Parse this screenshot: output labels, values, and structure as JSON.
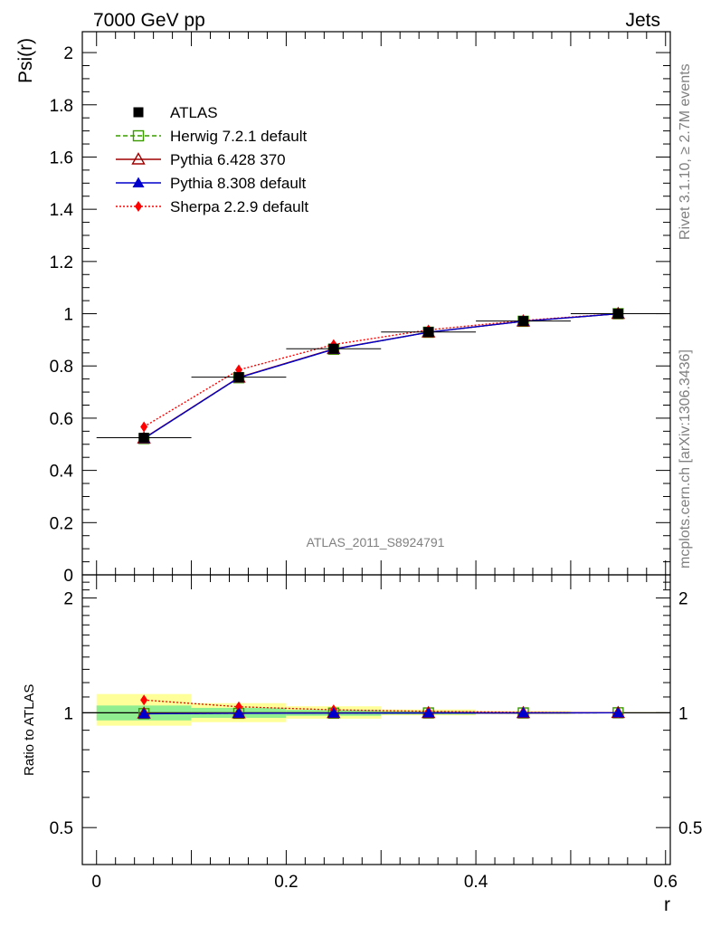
{
  "header": {
    "left": "7000 GeV pp",
    "right": "Jets"
  },
  "side_text": {
    "rivet": "Rivet 3.1.10, ≥ 2.7M events",
    "source": "mcplots.cern.ch [arXiv:1306.3436]"
  },
  "analysis_label": "ATLAS_2011_S8924791",
  "colors": {
    "atlas": "#000000",
    "herwig": "#3a9a00",
    "pythia6": "#a00000",
    "pythia8": "#0000cc",
    "sherpa": "#ff0000",
    "band_inner": "#90ee90",
    "band_outer": "#ffff99"
  },
  "chart_data": [
    {
      "type": "line",
      "ylabel": "Psi(r)",
      "ylim": [
        0,
        2.08
      ],
      "yticks": [
        "0",
        "0.2",
        "0.4",
        "0.6",
        "0.8",
        "1",
        "1.2",
        "1.4",
        "1.6",
        "1.8",
        "2"
      ],
      "x": [
        0.05,
        0.15,
        0.25,
        0.35,
        0.45,
        0.55
      ],
      "legend_placement": "top-left",
      "series": [
        {
          "name": "ATLAS",
          "key": "atlas",
          "marker": "square-filled",
          "values": [
            0.525,
            0.757,
            0.866,
            0.93,
            0.972,
            1.0
          ]
        },
        {
          "name": "Herwig 7.2.1 default",
          "key": "herwig",
          "marker": "square-open",
          "dash": "dashed",
          "values": [
            0.522,
            0.755,
            0.864,
            0.929,
            0.971,
            1.0
          ]
        },
        {
          "name": "Pythia 6.428 370",
          "key": "pythia6",
          "marker": "triangle-open",
          "dash": "solid",
          "values": [
            0.523,
            0.756,
            0.865,
            0.929,
            0.971,
            1.0
          ]
        },
        {
          "name": "Pythia 8.308 default",
          "key": "pythia8",
          "marker": "triangle-filled",
          "dash": "solid",
          "values": [
            0.522,
            0.755,
            0.864,
            0.929,
            0.971,
            1.0
          ]
        },
        {
          "name": "Sherpa 2.2.9 default",
          "key": "sherpa",
          "marker": "diamond-filled",
          "dash": "dotted",
          "values": [
            0.567,
            0.785,
            0.882,
            0.938,
            0.974,
            1.0
          ]
        }
      ]
    },
    {
      "type": "line",
      "xlabel": "r",
      "ylabel": "Ratio to ATLAS",
      "log_y": true,
      "ylim": [
        0.4,
        2.3
      ],
      "yticks": [
        "0.5",
        "1",
        "2"
      ],
      "xlim": [
        -0.015,
        0.605
      ],
      "xticks": [
        "0",
        "0.2",
        "0.4",
        "0.6"
      ],
      "x": [
        0.05,
        0.15,
        0.25,
        0.35,
        0.45,
        0.55
      ],
      "bands": {
        "inner": [
          [
            0.955,
            1.045
          ],
          [
            0.97,
            1.03
          ],
          [
            0.982,
            1.018
          ],
          [
            0.99,
            1.01
          ],
          [
            0.995,
            1.005
          ],
          [
            0.998,
            1.002
          ]
        ],
        "outer": [
          [
            0.925,
            1.12
          ],
          [
            0.945,
            1.06
          ],
          [
            0.965,
            1.04
          ],
          [
            0.985,
            1.02
          ],
          [
            0.992,
            1.01
          ],
          [
            0.997,
            1.004
          ]
        ]
      },
      "series": [
        {
          "name": "Herwig 7.2.1 default",
          "key": "herwig",
          "values": [
            0.995,
            0.997,
            0.998,
            0.999,
            0.999,
            1.0
          ]
        },
        {
          "name": "Pythia 6.428 370",
          "key": "pythia6",
          "values": [
            0.996,
            0.998,
            0.999,
            0.999,
            0.999,
            1.0
          ]
        },
        {
          "name": "Pythia 8.308 default",
          "key": "pythia8",
          "values": [
            0.994,
            0.997,
            0.998,
            0.999,
            0.999,
            1.0
          ]
        },
        {
          "name": "Sherpa 2.2.9 default",
          "key": "sherpa",
          "values": [
            1.08,
            1.037,
            1.018,
            1.009,
            1.003,
            1.0
          ]
        }
      ]
    }
  ]
}
